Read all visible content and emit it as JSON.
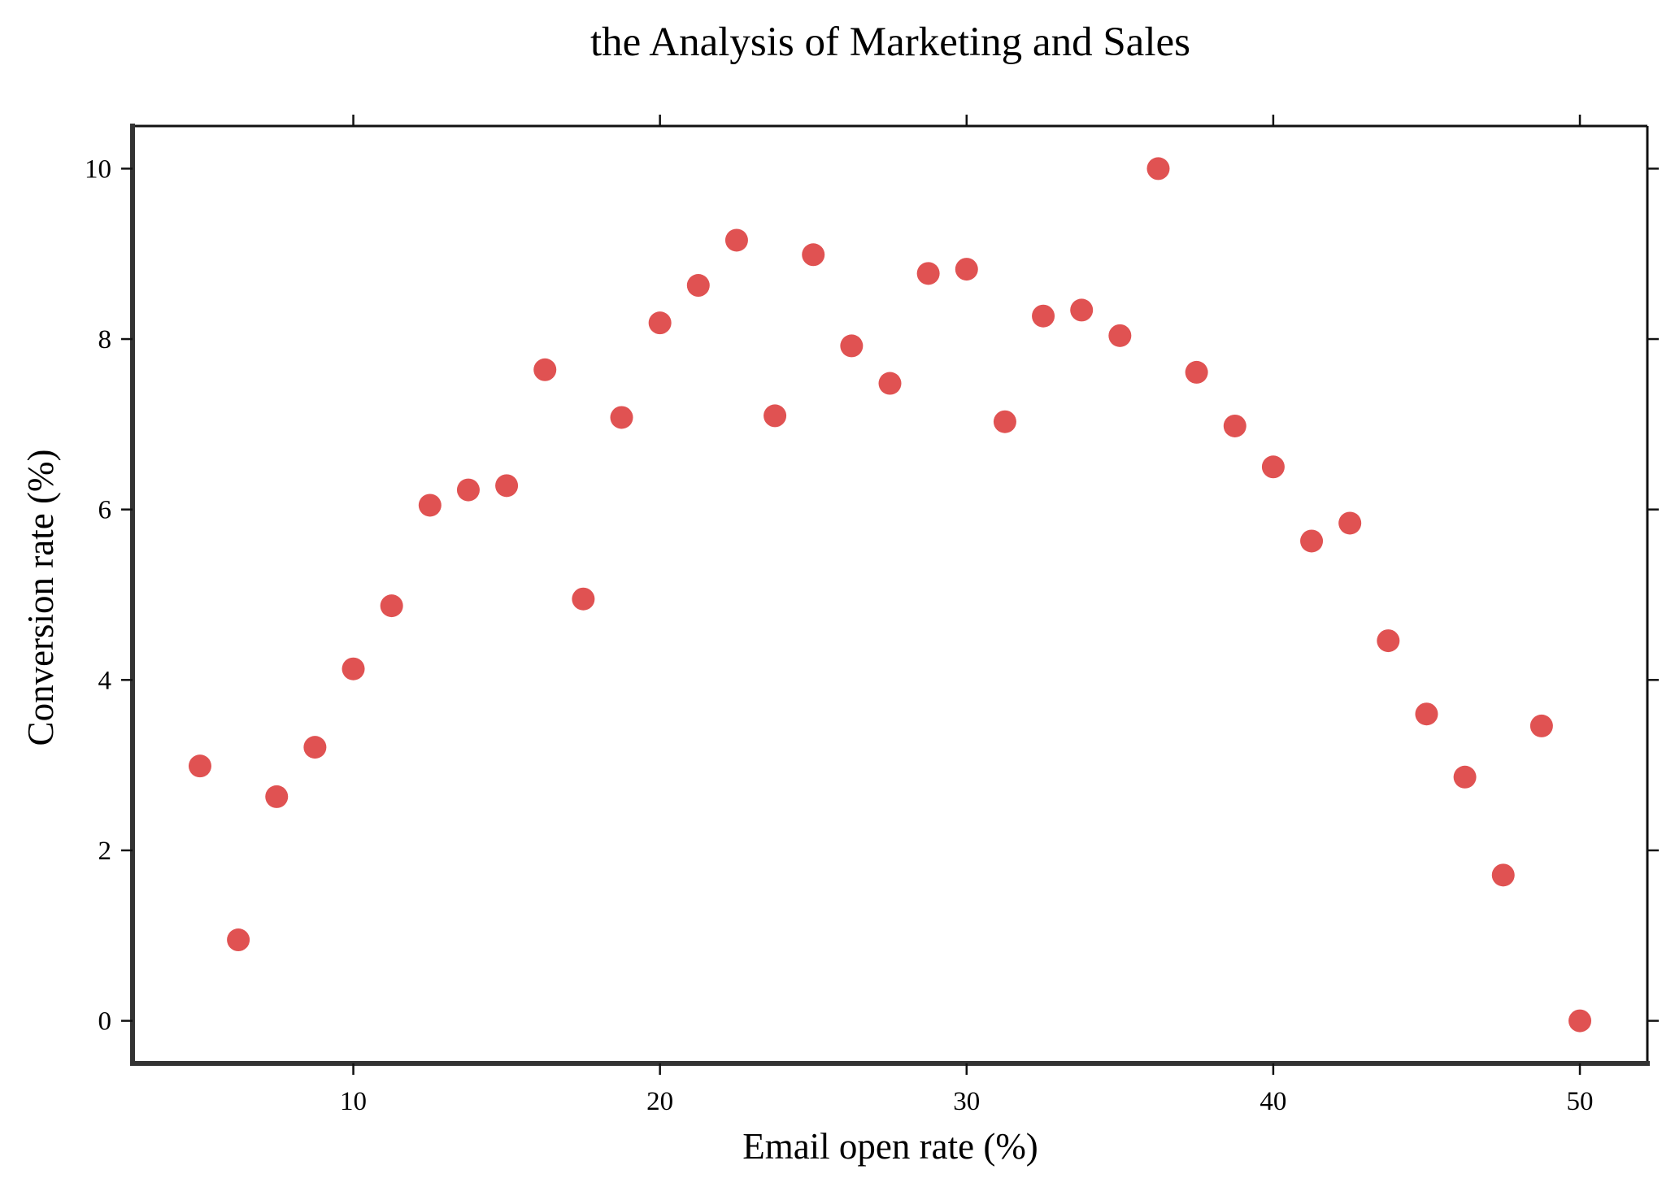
{
  "chart_data": {
    "type": "scatter",
    "title": "the Analysis of Marketing and Sales",
    "xlabel": "Email open rate (%)",
    "ylabel": "Conversion rate (%)",
    "xlim": [
      2.8,
      52.2
    ],
    "ylim": [
      -0.5,
      10.5
    ],
    "xticks": [
      10,
      20,
      30,
      40,
      50
    ],
    "yticks": [
      0,
      2,
      4,
      6,
      8,
      10
    ],
    "grid": false,
    "marker_color": "#e05252",
    "points": [
      {
        "x": 5.0,
        "y": 2.99
      },
      {
        "x": 6.25,
        "y": 0.95
      },
      {
        "x": 7.5,
        "y": 2.63
      },
      {
        "x": 8.75,
        "y": 3.21
      },
      {
        "x": 10.0,
        "y": 4.13
      },
      {
        "x": 11.25,
        "y": 4.87
      },
      {
        "x": 12.5,
        "y": 6.05
      },
      {
        "x": 13.75,
        "y": 6.23
      },
      {
        "x": 15.0,
        "y": 6.28
      },
      {
        "x": 16.25,
        "y": 7.64
      },
      {
        "x": 17.5,
        "y": 4.95
      },
      {
        "x": 18.75,
        "y": 7.08
      },
      {
        "x": 20.0,
        "y": 8.19
      },
      {
        "x": 21.25,
        "y": 8.63
      },
      {
        "x": 22.5,
        "y": 9.16
      },
      {
        "x": 23.75,
        "y": 7.1
      },
      {
        "x": 25.0,
        "y": 8.99
      },
      {
        "x": 26.25,
        "y": 7.92
      },
      {
        "x": 27.5,
        "y": 7.48
      },
      {
        "x": 28.75,
        "y": 8.77
      },
      {
        "x": 30.0,
        "y": 8.82
      },
      {
        "x": 31.25,
        "y": 7.03
      },
      {
        "x": 32.5,
        "y": 8.27
      },
      {
        "x": 33.75,
        "y": 8.34
      },
      {
        "x": 35.0,
        "y": 8.04
      },
      {
        "x": 36.25,
        "y": 10.0
      },
      {
        "x": 37.5,
        "y": 7.61
      },
      {
        "x": 38.75,
        "y": 6.98
      },
      {
        "x": 40.0,
        "y": 6.5
      },
      {
        "x": 41.25,
        "y": 5.63
      },
      {
        "x": 42.5,
        "y": 5.84
      },
      {
        "x": 43.75,
        "y": 4.46
      },
      {
        "x": 45.0,
        "y": 3.6
      },
      {
        "x": 46.25,
        "y": 2.86
      },
      {
        "x": 47.5,
        "y": 1.71
      },
      {
        "x": 48.75,
        "y": 3.46
      },
      {
        "x": 50.0,
        "y": 0.0
      }
    ]
  }
}
